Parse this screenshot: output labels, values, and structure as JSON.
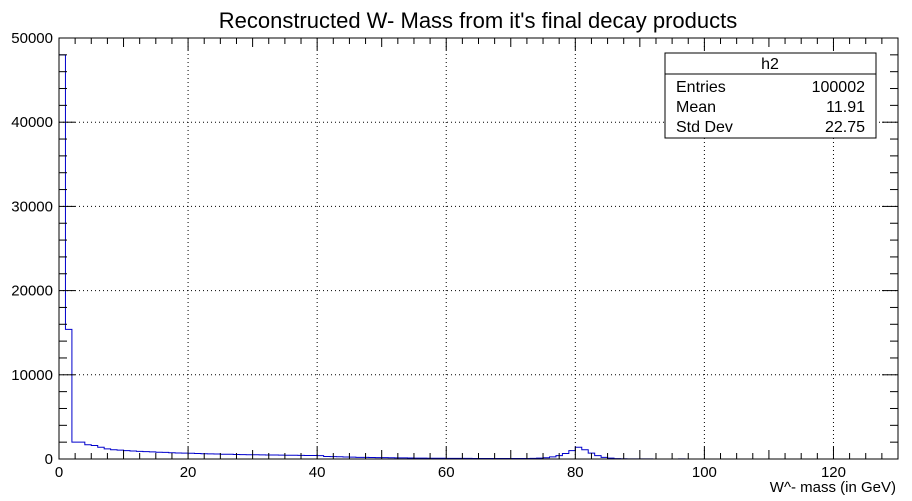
{
  "chart_data": {
    "type": "bar",
    "title": "Reconstructed W- Mass from it's final decay products",
    "xlabel": "W^- mass (in GeV)",
    "ylabel": "",
    "xlim": [
      0,
      130
    ],
    "ylim": [
      0,
      50000
    ],
    "xticks": [
      0,
      20,
      40,
      60,
      80,
      100,
      120
    ],
    "yticks": [
      0,
      10000,
      20000,
      30000,
      40000,
      50000
    ],
    "grid": true,
    "bin_width": 1,
    "x": [
      0,
      1,
      2,
      3,
      4,
      5,
      6,
      7,
      8,
      9,
      10,
      11,
      12,
      13,
      14,
      15,
      16,
      17,
      18,
      19,
      20,
      21,
      22,
      23,
      24,
      25,
      26,
      27,
      28,
      29,
      30,
      31,
      32,
      33,
      34,
      35,
      36,
      37,
      38,
      39,
      40,
      41,
      42,
      43,
      44,
      45,
      46,
      47,
      48,
      49,
      50,
      51,
      52,
      53,
      54,
      55,
      56,
      57,
      58,
      59,
      60,
      61,
      62,
      63,
      64,
      65,
      66,
      67,
      68,
      69,
      70,
      71,
      72,
      73,
      74,
      75,
      76,
      77,
      78,
      79,
      80,
      81,
      82,
      83,
      84,
      85,
      86,
      87,
      88,
      89,
      90,
      91,
      92,
      93,
      94,
      95,
      96,
      97,
      98,
      99
    ],
    "series": [
      {
        "values": [
          48000,
          15400,
          2000,
          2000,
          1700,
          1600,
          1400,
          1200,
          1100,
          1050,
          1000,
          950,
          900,
          880,
          850,
          800,
          780,
          750,
          720,
          700,
          680,
          650,
          630,
          610,
          590,
          570,
          560,
          540,
          520,
          510,
          500,
          490,
          480,
          470,
          460,
          450,
          440,
          430,
          420,
          410,
          400,
          300,
          280,
          260,
          240,
          220,
          200,
          190,
          180,
          170,
          160,
          150,
          140,
          130,
          120,
          110,
          100,
          95,
          90,
          85,
          80,
          75,
          70,
          68,
          66,
          64,
          62,
          60,
          58,
          56,
          55,
          55,
          60,
          70,
          100,
          150,
          250,
          400,
          650,
          1000,
          1400,
          1100,
          700,
          400,
          200,
          100,
          50,
          30,
          20,
          15,
          10,
          8,
          6,
          5,
          4,
          3,
          20,
          3,
          2,
          2
        ]
      }
    ],
    "color": "#0000cc"
  },
  "stats": {
    "name": "h2",
    "rows": [
      {
        "label": "Entries",
        "value": "100002"
      },
      {
        "label": "Mean",
        "value": "11.91"
      },
      {
        "label": "Std Dev",
        "value": "22.75"
      }
    ]
  }
}
